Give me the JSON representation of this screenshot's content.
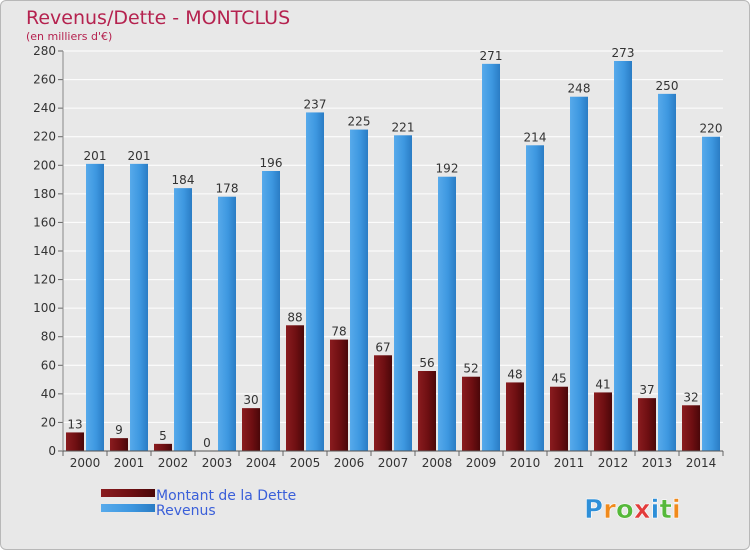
{
  "chart_data": {
    "type": "bar",
    "title": "Revenus/Dette - MONTCLUS",
    "subtitle": "(en milliers d'€)",
    "categories": [
      "2000",
      "2001",
      "2002",
      "2003",
      "2004",
      "2005",
      "2006",
      "2007",
      "2008",
      "2009",
      "2010",
      "2011",
      "2012",
      "2013",
      "2014"
    ],
    "series": [
      {
        "name": "Montant de la Dette",
        "color": "#6e0f12",
        "values": [
          13,
          9,
          5,
          0,
          30,
          88,
          78,
          67,
          56,
          52,
          48,
          45,
          41,
          37,
          32
        ]
      },
      {
        "name": "Revenus",
        "color": "#3d97e0",
        "values": [
          201,
          201,
          184,
          178,
          196,
          237,
          225,
          221,
          192,
          271,
          214,
          248,
          273,
          250,
          220
        ]
      }
    ],
    "ylim": [
      0,
      280
    ],
    "yticks": [
      0,
      20,
      40,
      60,
      80,
      100,
      120,
      140,
      160,
      180,
      200,
      220,
      240,
      260,
      280
    ],
    "grid": true,
    "legend_position": "bottom-left"
  },
  "branding": {
    "logo_text": "Proxiti",
    "logo_colors": [
      "#2e8fd8",
      "#f08a1c",
      "#55b83a",
      "#e23b3b",
      "#2e8fd8",
      "#55b83a",
      "#f08a1c"
    ]
  }
}
